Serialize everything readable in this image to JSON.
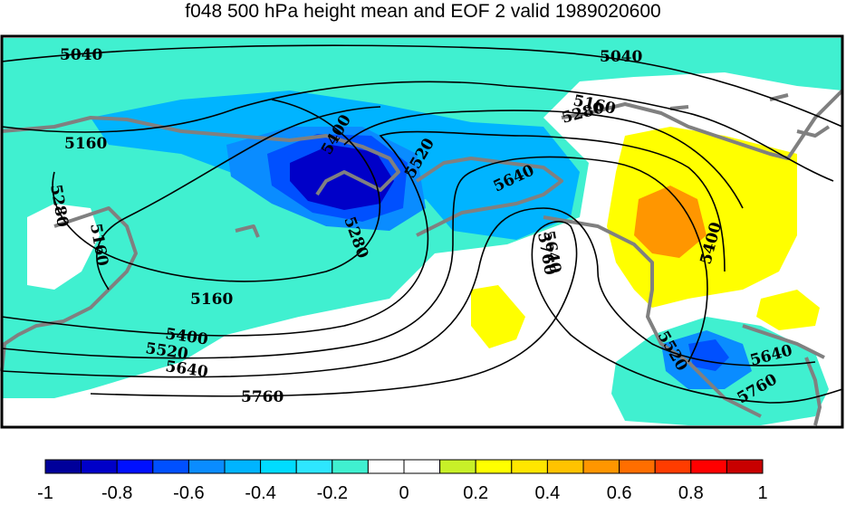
{
  "title": "f048 500 hPa height mean and EOF 2 valid 1989020600",
  "colorbar": {
    "tick_labels": [
      "-1",
      "-0.8",
      "-0.6",
      "-0.4",
      "-0.2",
      "0",
      "0.2",
      "0.4",
      "0.6",
      "0.8",
      "1"
    ],
    "colors": [
      "#00009a",
      "#0000c8",
      "#0010ff",
      "#0050ff",
      "#0a8cff",
      "#00b4ff",
      "#00dcff",
      "#2ee6ff",
      "#40f0d0",
      "#ffffff",
      "#ffffff",
      "#c8f028",
      "#ffff00",
      "#ffe600",
      "#ffc300",
      "#ff9600",
      "#ff6e00",
      "#ff3c00",
      "#ff0000",
      "#c80000"
    ]
  },
  "contour_labels": [
    "5040",
    "5040",
    "5160",
    "5160",
    "5160",
    "5160",
    "5280",
    "5280",
    "5280",
    "5400",
    "5400",
    "5400",
    "5520",
    "5520",
    "5520",
    "5640",
    "5640",
    "5640",
    "5640",
    "5760",
    "5760",
    "5760"
  ]
}
